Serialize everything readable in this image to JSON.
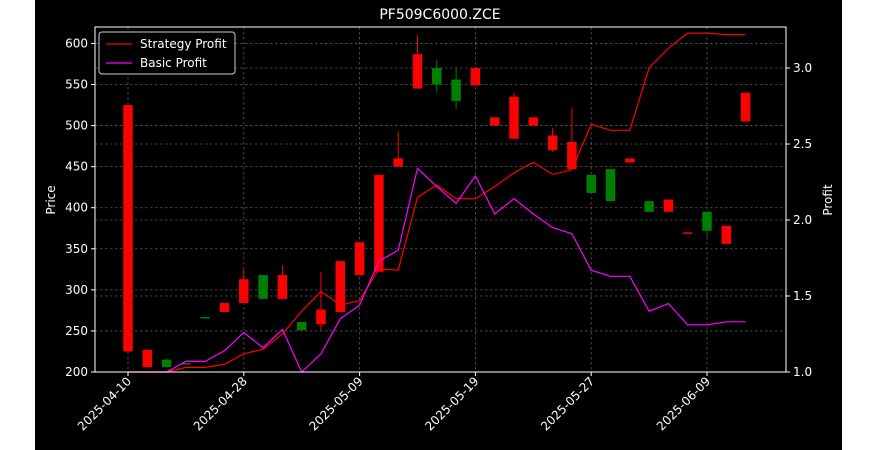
{
  "chart_data": {
    "type": "candlestick",
    "title": "PF509C6000.ZCE",
    "ylabel_left": "Price",
    "ylabel_right": "Profit",
    "ylim_left": [
      200,
      620
    ],
    "ylim_right": [
      1.0,
      3.27
    ],
    "yticks_left": [
      200,
      250,
      300,
      350,
      400,
      450,
      500,
      550,
      600
    ],
    "yticks_right": [
      "1.0",
      "1.5",
      "2.0",
      "2.5",
      "3.0"
    ],
    "grid": true,
    "legend_position": "top-left",
    "x_tick_labels": [
      {
        "index": 0,
        "label": "2025-04-10"
      },
      {
        "index": 6,
        "label": "2025-04-28"
      },
      {
        "index": 12,
        "label": "2025-05-09"
      },
      {
        "index": 18,
        "label": "2025-05-19"
      },
      {
        "index": 24,
        "label": "2025-05-27"
      },
      {
        "index": 30,
        "label": "2025-06-09"
      }
    ],
    "colors": {
      "up": "#008000",
      "down": "#ff0000",
      "background": "#000000"
    },
    "candles": [
      {
        "open": 525,
        "high": 525,
        "low": 224,
        "close": 225
      },
      {
        "open": 227,
        "high": 227,
        "low": 205,
        "close": 206
      },
      {
        "open": 206,
        "high": 216,
        "low": 206,
        "close": 215
      },
      {
        "open": 211,
        "high": 211,
        "low": 211,
        "close": 211
      },
      {
        "open": 267,
        "high": 267,
        "low": 267,
        "close": 267
      },
      {
        "open": 284,
        "high": 284,
        "low": 273,
        "close": 273
      },
      {
        "open": 313,
        "high": 325,
        "low": 284,
        "close": 284
      },
      {
        "open": 289,
        "high": 318,
        "low": 289,
        "close": 318
      },
      {
        "open": 318,
        "high": 330,
        "low": 289,
        "close": 289
      },
      {
        "open": 251,
        "high": 261,
        "low": 251,
        "close": 261
      },
      {
        "open": 276,
        "high": 322,
        "low": 251,
        "close": 258
      },
      {
        "open": 335,
        "high": 335,
        "low": 273,
        "close": 273
      },
      {
        "open": 358,
        "high": 358,
        "low": 318,
        "close": 318
      },
      {
        "open": 440,
        "high": 440,
        "low": 322,
        "close": 322
      },
      {
        "open": 460,
        "high": 493,
        "low": 450,
        "close": 450
      },
      {
        "open": 587,
        "high": 610,
        "low": 545,
        "close": 545
      },
      {
        "open": 550,
        "high": 580,
        "low": 540,
        "close": 570
      },
      {
        "open": 530,
        "high": 570,
        "low": 520,
        "close": 556
      },
      {
        "open": 570,
        "high": 570,
        "low": 549,
        "close": 549
      },
      {
        "open": 510,
        "high": 510,
        "low": 500,
        "close": 500
      },
      {
        "open": 535,
        "high": 540,
        "low": 484,
        "close": 484
      },
      {
        "open": 510,
        "high": 510,
        "low": 500,
        "close": 500
      },
      {
        "open": 488,
        "high": 497,
        "low": 468,
        "close": 470
      },
      {
        "open": 480,
        "high": 522,
        "low": 447,
        "close": 447
      },
      {
        "open": 418,
        "high": 440,
        "low": 418,
        "close": 440
      },
      {
        "open": 408,
        "high": 447,
        "low": 408,
        "close": 447
      },
      {
        "open": 460,
        "high": 460,
        "low": 455,
        "close": 455
      },
      {
        "open": 395,
        "high": 408,
        "low": 395,
        "close": 408
      },
      {
        "open": 410,
        "high": 410,
        "low": 395,
        "close": 395
      },
      {
        "open": 370,
        "high": 370,
        "low": 369,
        "close": 369
      },
      {
        "open": 372,
        "high": 395,
        "low": 365,
        "close": 395
      },
      {
        "open": 378,
        "high": 378,
        "low": 356,
        "close": 356
      },
      {
        "open": 540,
        "high": 540,
        "low": 505,
        "close": 505
      }
    ],
    "series": [
      {
        "name": "Strategy Profit",
        "color": "#ff0000",
        "axis": "right",
        "points": [
          [
            0,
            1.0
          ],
          [
            1,
            1.0
          ],
          [
            2,
            1.0
          ],
          [
            3,
            1.03
          ],
          [
            4,
            1.03
          ],
          [
            5,
            1.05
          ],
          [
            6,
            1.12
          ],
          [
            7,
            1.15
          ],
          [
            8,
            1.25
          ],
          [
            9,
            1.4
          ],
          [
            10,
            1.53
          ],
          [
            11,
            1.44
          ],
          [
            12,
            1.47
          ],
          [
            13,
            1.68
          ],
          [
            14,
            1.67
          ],
          [
            15,
            2.15
          ],
          [
            16,
            2.23
          ],
          [
            17,
            2.14
          ],
          [
            18,
            2.14
          ],
          [
            19,
            2.22
          ],
          [
            20,
            2.31
          ],
          [
            21,
            2.38
          ],
          [
            22,
            2.3
          ],
          [
            23,
            2.33
          ],
          [
            24,
            2.63
          ],
          [
            25,
            2.59
          ],
          [
            26,
            2.59
          ],
          [
            27,
            3.0
          ],
          [
            28,
            3.13
          ],
          [
            29,
            3.23
          ],
          [
            30,
            3.23
          ],
          [
            31,
            3.22
          ],
          [
            32,
            3.22
          ]
        ]
      },
      {
        "name": "Basic Profit",
        "color": "#ff00ff",
        "axis": "right",
        "points": [
          [
            0,
            1.0
          ],
          [
            1,
            1.0
          ],
          [
            2,
            1.0
          ],
          [
            3,
            1.07
          ],
          [
            4,
            1.07
          ],
          [
            5,
            1.14
          ],
          [
            6,
            1.26
          ],
          [
            7,
            1.16
          ],
          [
            8,
            1.28
          ],
          [
            9,
            1.0
          ],
          [
            10,
            1.12
          ],
          [
            11,
            1.35
          ],
          [
            12,
            1.44
          ],
          [
            13,
            1.73
          ],
          [
            14,
            1.8
          ],
          [
            15,
            2.34
          ],
          [
            16,
            2.22
          ],
          [
            17,
            2.11
          ],
          [
            18,
            2.29
          ],
          [
            19,
            2.04
          ],
          [
            20,
            2.14
          ],
          [
            21,
            2.04
          ],
          [
            22,
            1.95
          ],
          [
            23,
            1.91
          ],
          [
            24,
            1.67
          ],
          [
            25,
            1.63
          ],
          [
            26,
            1.63
          ],
          [
            27,
            1.4
          ],
          [
            28,
            1.45
          ],
          [
            29,
            1.31
          ],
          [
            30,
            1.31
          ],
          [
            31,
            1.33
          ],
          [
            32,
            1.33
          ]
        ]
      }
    ]
  }
}
